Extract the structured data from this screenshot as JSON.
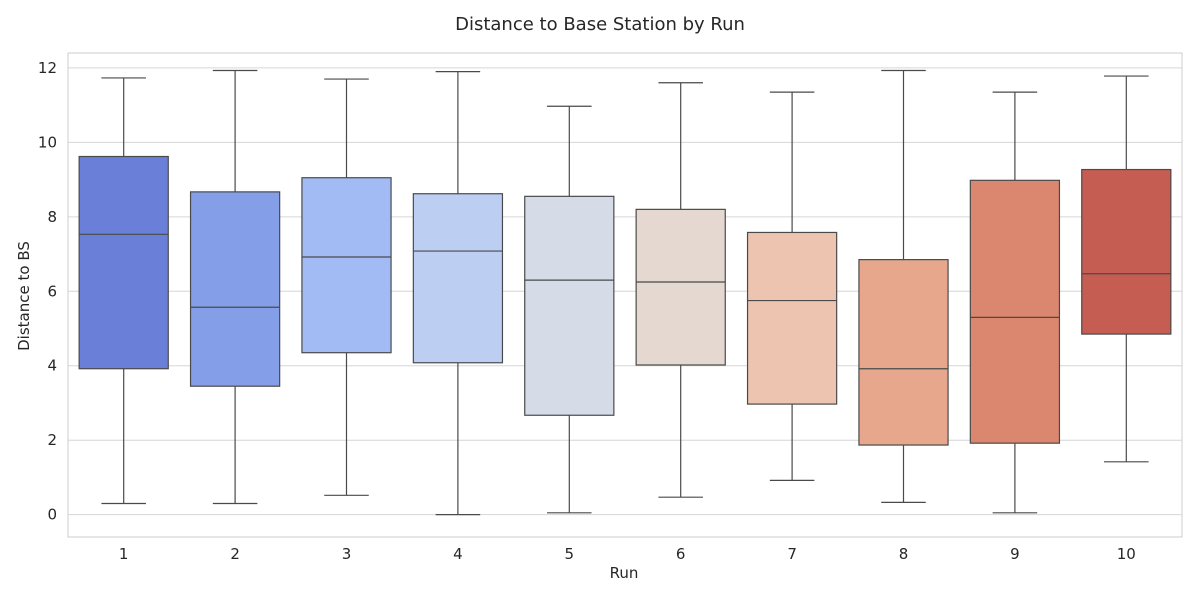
{
  "chart_data": {
    "type": "box",
    "title": "Distance to Base Station by Run",
    "xlabel": "Run",
    "ylabel": "Distance to BS",
    "ylim": [
      -0.6,
      12.4
    ],
    "yticks": [
      0,
      2,
      4,
      6,
      8,
      10,
      12
    ],
    "grid": true,
    "categories": [
      "1",
      "2",
      "3",
      "4",
      "5",
      "6",
      "7",
      "8",
      "9",
      "10"
    ],
    "boxes": [
      {
        "min": 0.3,
        "q1": 3.92,
        "median": 7.53,
        "q3": 9.62,
        "max": 11.73,
        "color": "#6a80d8"
      },
      {
        "min": 0.3,
        "q1": 3.45,
        "median": 5.57,
        "q3": 8.67,
        "max": 11.93,
        "color": "#849fe8"
      },
      {
        "min": 0.52,
        "q1": 4.35,
        "median": 6.92,
        "q3": 9.05,
        "max": 11.7,
        "color": "#a3bbf4"
      },
      {
        "min": 0.0,
        "q1": 4.08,
        "median": 7.08,
        "q3": 8.62,
        "max": 11.9,
        "color": "#bccff2"
      },
      {
        "min": 0.05,
        "q1": 2.67,
        "median": 6.3,
        "q3": 8.55,
        "max": 10.97,
        "color": "#d5dce8"
      },
      {
        "min": 0.47,
        "q1": 4.02,
        "median": 6.25,
        "q3": 8.2,
        "max": 11.6,
        "color": "#e5d8d1"
      },
      {
        "min": 0.92,
        "q1": 2.97,
        "median": 5.75,
        "q3": 7.58,
        "max": 11.35,
        "color": "#edc4b0"
      },
      {
        "min": 0.33,
        "q1": 1.87,
        "median": 3.92,
        "q3": 6.85,
        "max": 11.93,
        "color": "#e7a78c"
      },
      {
        "min": 0.05,
        "q1": 1.92,
        "median": 5.3,
        "q3": 8.98,
        "max": 11.35,
        "color": "#db8770"
      },
      {
        "min": 1.42,
        "q1": 4.85,
        "median": 6.47,
        "q3": 9.27,
        "max": 11.78,
        "color": "#c65d52"
      }
    ],
    "line_color": "#4a4a4a",
    "grid_color": "#d6d6d6",
    "axes_edge_color": "#cccccc"
  }
}
